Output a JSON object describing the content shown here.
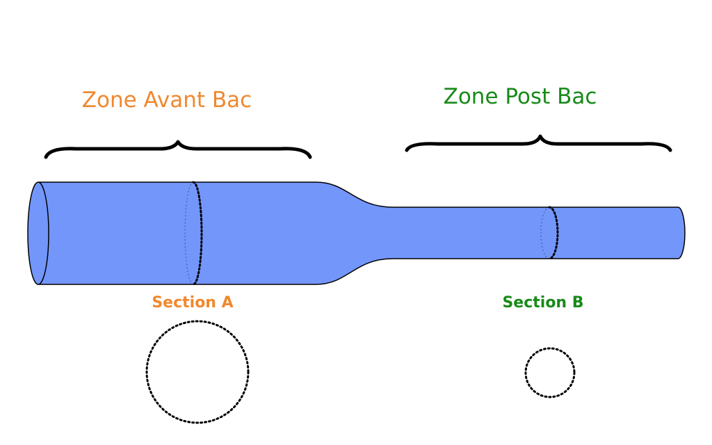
{
  "zones": {
    "pre": {
      "label": "Zone Avant Bac",
      "color": "#f0882e"
    },
    "post": {
      "label": "Zone Post Bac",
      "color": "#188a18"
    }
  },
  "sections": {
    "a": {
      "label": "Section A",
      "color": "#f0882e"
    },
    "b": {
      "label": "Section B",
      "color": "#188a18"
    }
  },
  "pipe": {
    "fill_color": "#7396fb",
    "stroke_color": "#000000"
  },
  "brace_color": "#000000"
}
